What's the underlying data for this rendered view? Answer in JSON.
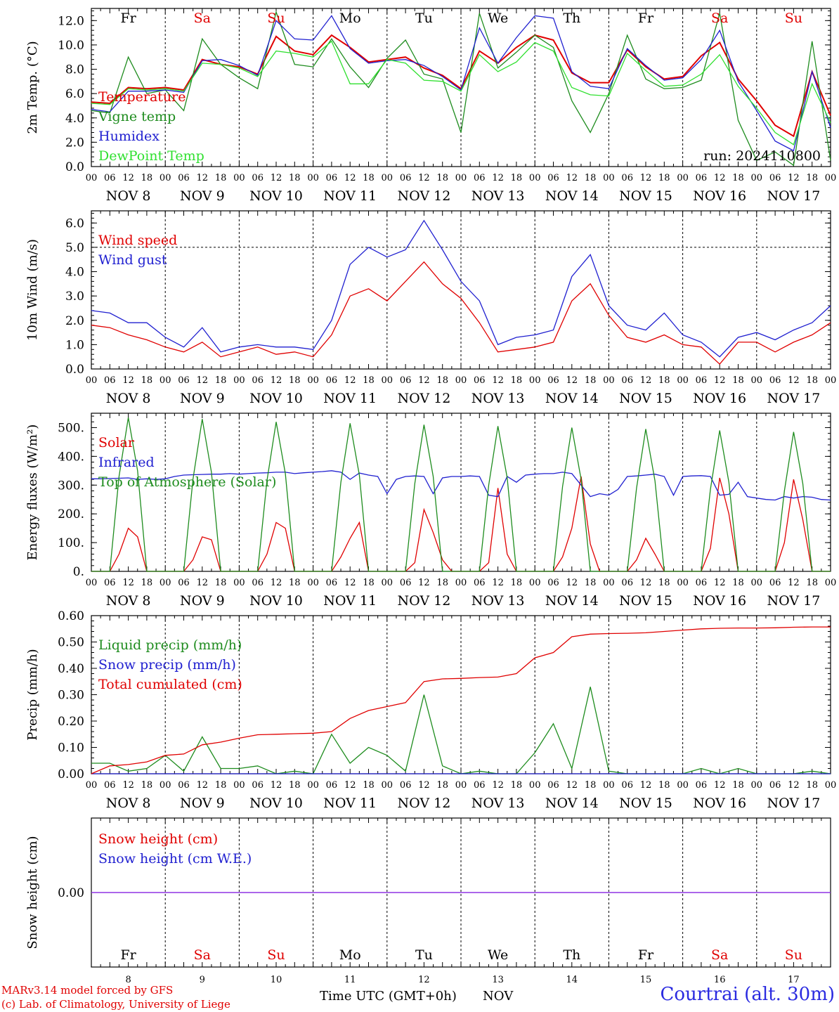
{
  "run_label": "run: 2024110800",
  "days": [
    {
      "abbr": "Fr",
      "weekend": false,
      "date": "NOV  8",
      "num": "8"
    },
    {
      "abbr": "Sa",
      "weekend": true,
      "date": "NOV  9",
      "num": "9"
    },
    {
      "abbr": "Su",
      "weekend": true,
      "date": "NOV 10",
      "num": "10"
    },
    {
      "abbr": "Mo",
      "weekend": false,
      "date": "NOV 11",
      "num": "11"
    },
    {
      "abbr": "Tu",
      "weekend": false,
      "date": "NOV 12",
      "num": "12"
    },
    {
      "abbr": "We",
      "weekend": false,
      "date": "NOV 13",
      "num": "13"
    },
    {
      "abbr": "Th",
      "weekend": false,
      "date": "NOV 14",
      "num": "14"
    },
    {
      "abbr": "Fr",
      "weekend": false,
      "date": "NOV 15",
      "num": "15"
    },
    {
      "abbr": "Sa",
      "weekend": true,
      "date": "NOV 16",
      "num": "16"
    },
    {
      "abbr": "Su",
      "weekend": true,
      "date": "NOV 17",
      "num": "17"
    }
  ],
  "hour_ticks": [
    "00",
    "06",
    "12",
    "18"
  ],
  "footer": {
    "model": "MARv3.14 model forced by GFS",
    "credit": "(c) Lab. of Climatology, University of Liege",
    "xlabel": "Time UTC (GMT+0h)",
    "month": "NOV",
    "station": "Courtrai (alt. 30m)"
  },
  "colors": {
    "red": "#e00000",
    "green": "#1e8c1e",
    "blue": "#2020d0",
    "lime": "#30e030",
    "purple": "#8a2be2",
    "weekend": "#e00000"
  },
  "chart_data": [
    {
      "type": "line",
      "ylabel": "2m Temp. (°C)",
      "ylim": [
        0,
        13
      ],
      "yticks": [
        "0.0",
        "2.0",
        "4.0",
        "6.0",
        "8.0",
        "10.0",
        "12.0"
      ],
      "x_hours": [
        0,
        6,
        12,
        18,
        24,
        30,
        36,
        42,
        48,
        54,
        60,
        66,
        72,
        78,
        84,
        90,
        96,
        102,
        108,
        114,
        120,
        126,
        132,
        138,
        144,
        150,
        156,
        162,
        168,
        174,
        180,
        186,
        192,
        198,
        204,
        210,
        216,
        222,
        228,
        234,
        240
      ],
      "series": [
        {
          "name": "Temperature",
          "color": "red",
          "values": [
            5.3,
            5.2,
            6.5,
            6.4,
            6.5,
            6.3,
            8.8,
            8.4,
            8.2,
            7.6,
            10.7,
            9.5,
            9.2,
            10.8,
            9.8,
            8.6,
            8.8,
            9.0,
            8.1,
            7.5,
            6.4,
            9.5,
            8.5,
            9.8,
            10.8,
            10.4,
            7.7,
            6.9,
            6.9,
            9.6,
            8.2,
            7.2,
            7.4,
            9.1,
            10.2,
            7.2,
            5.4,
            3.4,
            2.5,
            7.8,
            4.2
          ]
        },
        {
          "name": "Vigne temp",
          "color": "green",
          "values": [
            4.6,
            4.4,
            9.0,
            6.0,
            6.3,
            4.6,
            10.5,
            8.4,
            7.3,
            6.4,
            12.7,
            8.4,
            8.2,
            10.5,
            8.2,
            6.5,
            8.9,
            10.4,
            7.6,
            7.2,
            2.8,
            12.6,
            8.1,
            9.4,
            10.8,
            9.8,
            5.4,
            2.8,
            6.0,
            10.8,
            7.2,
            6.4,
            6.5,
            7.1,
            12.6,
            3.8,
            0.5,
            1.2,
            0.1,
            10.3,
            0.5
          ]
        },
        {
          "name": "Humidex",
          "color": "blue",
          "values": [
            4.7,
            4.5,
            6.2,
            6.2,
            6.3,
            6.1,
            8.7,
            8.8,
            8.3,
            7.5,
            12.0,
            10.5,
            10.4,
            12.4,
            9.7,
            8.5,
            8.7,
            8.8,
            8.3,
            7.4,
            6.3,
            11.4,
            8.5,
            10.6,
            12.4,
            12.2,
            7.8,
            6.6,
            6.4,
            9.7,
            8.3,
            7.1,
            7.3,
            8.8,
            11.2,
            7.0,
            4.6,
            2.1,
            1.3,
            7.8,
            3.2
          ]
        },
        {
          "name": "DewPoint Temp",
          "color": "lime",
          "values": [
            5.2,
            5.1,
            6.4,
            6.3,
            6.4,
            6.2,
            8.5,
            8.4,
            8.1,
            7.4,
            9.5,
            9.3,
            9.0,
            10.3,
            6.8,
            6.8,
            8.8,
            8.5,
            7.1,
            7.0,
            6.2,
            9.2,
            7.8,
            8.6,
            10.2,
            9.5,
            6.5,
            5.9,
            5.8,
            9.3,
            7.9,
            6.6,
            6.7,
            7.6,
            9.2,
            6.6,
            4.8,
            2.8,
            1.8,
            6.8,
            3.6
          ]
        }
      ]
    },
    {
      "type": "line",
      "ylabel": "10m Wind (m/s)",
      "ylim": [
        0,
        6.5
      ],
      "yticks": [
        "0.0",
        "1.0",
        "2.0",
        "3.0",
        "4.0",
        "5.0",
        "6.0"
      ],
      "x_hours": [
        0,
        6,
        12,
        18,
        24,
        30,
        36,
        42,
        48,
        54,
        60,
        66,
        72,
        78,
        84,
        90,
        96,
        102,
        108,
        114,
        120,
        126,
        132,
        138,
        144,
        150,
        156,
        162,
        168,
        174,
        180,
        186,
        192,
        198,
        204,
        210,
        216,
        222,
        228,
        234,
        240
      ],
      "series": [
        {
          "name": "Wind speed",
          "color": "red",
          "values": [
            1.8,
            1.7,
            1.4,
            1.2,
            0.9,
            0.7,
            1.1,
            0.5,
            0.7,
            0.9,
            0.6,
            0.7,
            0.5,
            1.4,
            3.0,
            3.3,
            2.8,
            3.6,
            4.4,
            3.5,
            2.9,
            1.9,
            0.7,
            0.8,
            0.9,
            1.1,
            2.8,
            3.5,
            2.2,
            1.3,
            1.1,
            1.4,
            1.0,
            0.9,
            0.2,
            1.1,
            1.1,
            0.7,
            1.1,
            1.4,
            1.9
          ]
        },
        {
          "name": "Wind gust",
          "color": "blue",
          "values": [
            2.4,
            2.3,
            1.9,
            1.9,
            1.3,
            0.9,
            1.7,
            0.7,
            0.9,
            1.0,
            0.9,
            0.9,
            0.8,
            2.0,
            4.3,
            5.0,
            4.6,
            4.9,
            6.1,
            4.9,
            3.6,
            2.8,
            1.0,
            1.3,
            1.4,
            1.6,
            3.8,
            4.7,
            2.6,
            1.8,
            1.6,
            2.3,
            1.4,
            1.1,
            0.5,
            1.3,
            1.5,
            1.2,
            1.6,
            1.9,
            2.6
          ]
        }
      ],
      "ref_line": 5.0
    },
    {
      "type": "line",
      "ylabel": "Energy fluxes (W/m²)",
      "ylim": [
        0,
        550
      ],
      "yticks": [
        "0.",
        "100.",
        "200.",
        "300.",
        "400.",
        "500."
      ],
      "x_hours": [
        0,
        3,
        6,
        9,
        12,
        15,
        18,
        21,
        24,
        27,
        30,
        33,
        36,
        39,
        42,
        45,
        48,
        51,
        54,
        57,
        60,
        63,
        66,
        69,
        72,
        75,
        78,
        81,
        84,
        87,
        90,
        93,
        96,
        99,
        102,
        105,
        108,
        111,
        114,
        117,
        120,
        123,
        126,
        129,
        132,
        135,
        138,
        141,
        144,
        147,
        150,
        153,
        156,
        159,
        162,
        165,
        168,
        171,
        174,
        177,
        180,
        183,
        186,
        189,
        192,
        195,
        198,
        201,
        204,
        207,
        210,
        213,
        216,
        219,
        222,
        225,
        228,
        231,
        234,
        237,
        240
      ],
      "series": [
        {
          "name": "Solar",
          "color": "red",
          "values": [
            0,
            0,
            0,
            60,
            150,
            120,
            0,
            0,
            0,
            0,
            0,
            40,
            120,
            110,
            0,
            0,
            0,
            0,
            0,
            60,
            170,
            150,
            0,
            0,
            0,
            0,
            0,
            50,
            115,
            170,
            0,
            0,
            0,
            0,
            0,
            30,
            215,
            135,
            40,
            0,
            0,
            0,
            0,
            30,
            290,
            60,
            0,
            0,
            0,
            0,
            0,
            50,
            150,
            330,
            95,
            0,
            0,
            0,
            0,
            40,
            115,
            60,
            0,
            0,
            0,
            0,
            0,
            80,
            325,
            200,
            0,
            0,
            0,
            0,
            0,
            100,
            320,
            180,
            0,
            0,
            0
          ]
        },
        {
          "name": "Infrared",
          "color": "blue",
          "values": [
            322,
            322,
            323,
            324,
            325,
            320,
            322,
            320,
            322,
            330,
            335,
            336,
            337,
            338,
            338,
            340,
            338,
            340,
            342,
            343,
            345,
            345,
            340,
            343,
            345,
            347,
            350,
            345,
            320,
            342,
            335,
            330,
            270,
            320,
            330,
            332,
            330,
            270,
            325,
            330,
            330,
            332,
            330,
            265,
            260,
            330,
            310,
            335,
            338,
            340,
            340,
            345,
            340,
            300,
            260,
            270,
            265,
            285,
            330,
            332,
            335,
            338,
            330,
            265,
            330,
            332,
            333,
            330,
            265,
            268,
            310,
            260,
            255,
            250,
            248,
            260,
            255,
            260,
            258,
            250,
            248
          ]
        },
        {
          "name": "Top of Atmosphere (Solar)",
          "color": "green",
          "values": [
            0,
            0,
            0,
            330,
            535,
            350,
            0,
            0,
            0,
            0,
            0,
            320,
            530,
            345,
            0,
            0,
            0,
            0,
            0,
            315,
            520,
            340,
            0,
            0,
            0,
            0,
            0,
            310,
            515,
            335,
            0,
            0,
            0,
            0,
            0,
            305,
            510,
            330,
            0,
            0,
            0,
            0,
            0,
            300,
            505,
            325,
            0,
            0,
            0,
            0,
            0,
            295,
            500,
            320,
            0,
            0,
            0,
            0,
            0,
            290,
            495,
            315,
            0,
            0,
            0,
            0,
            0,
            285,
            490,
            310,
            0,
            0,
            0,
            0,
            0,
            280,
            485,
            305,
            0,
            0,
            0
          ]
        }
      ]
    },
    {
      "type": "line",
      "ylabel": "Precip (mm/h)",
      "ylim": [
        0,
        0.6
      ],
      "yticks": [
        "0.00",
        "0.10",
        "0.20",
        "0.30",
        "0.40",
        "0.50",
        "0.60"
      ],
      "x_hours": [
        0,
        6,
        12,
        18,
        24,
        30,
        36,
        42,
        48,
        54,
        60,
        66,
        72,
        78,
        84,
        90,
        96,
        102,
        108,
        114,
        120,
        126,
        132,
        138,
        144,
        150,
        156,
        162,
        168,
        174,
        180,
        186,
        192,
        198,
        204,
        210,
        216,
        222,
        228,
        234,
        240
      ],
      "series": [
        {
          "name": "Liquid precip (mm/h)",
          "color": "green",
          "values": [
            0.04,
            0.04,
            0.01,
            0.02,
            0.07,
            0.01,
            0.14,
            0.02,
            0.02,
            0.03,
            0.0,
            0.01,
            0.0,
            0.15,
            0.04,
            0.1,
            0.07,
            0.01,
            0.3,
            0.03,
            0.0,
            0.01,
            0.0,
            0.0,
            0.08,
            0.19,
            0.02,
            0.33,
            0.01,
            0.0,
            0.0,
            0.0,
            0.0,
            0.02,
            0.0,
            0.02,
            0.0,
            0.0,
            0.0,
            0.01,
            0.0
          ]
        },
        {
          "name": "Snow precip (mm/h)",
          "color": "blue",
          "values": [
            0,
            0,
            0,
            0,
            0,
            0,
            0,
            0,
            0,
            0,
            0,
            0,
            0,
            0,
            0,
            0,
            0,
            0,
            0,
            0,
            0,
            0,
            0,
            0,
            0,
            0,
            0,
            0,
            0,
            0,
            0,
            0,
            0,
            0,
            0,
            0,
            0,
            0,
            0,
            0,
            0
          ]
        },
        {
          "name": "Total cumulated (cm)",
          "color": "red",
          "values": [
            0.0,
            0.03,
            0.035,
            0.045,
            0.07,
            0.075,
            0.11,
            0.12,
            0.135,
            0.148,
            0.15,
            0.152,
            0.154,
            0.16,
            0.21,
            0.24,
            0.255,
            0.27,
            0.35,
            0.36,
            0.362,
            0.365,
            0.367,
            0.38,
            0.44,
            0.46,
            0.52,
            0.53,
            0.532,
            0.533,
            0.535,
            0.54,
            0.545,
            0.55,
            0.552,
            0.553,
            0.553,
            0.554,
            0.556,
            0.557,
            0.557
          ]
        }
      ]
    },
    {
      "type": "line",
      "ylabel": "Snow height (cm)",
      "ylim": [
        -1,
        1
      ],
      "yticks": [
        "0.00"
      ],
      "x_hours": [
        0,
        240
      ],
      "series": [
        {
          "name": "Snow height (cm)",
          "color": "red",
          "values": [
            0,
            0
          ]
        },
        {
          "name": "Snow height (cm W.E.)",
          "color": "blue",
          "values": [
            0,
            0
          ]
        }
      ]
    }
  ]
}
